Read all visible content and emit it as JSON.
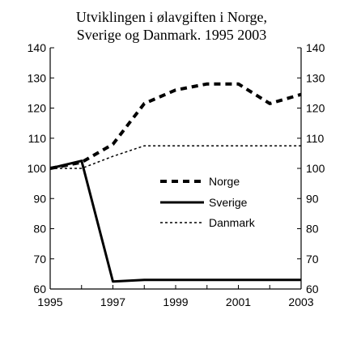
{
  "chart_data": {
    "type": "line",
    "title_lines": [
      "Utviklingen i ølavgiften i Norge,",
      "Sverige og Danmark. 1995 2003"
    ],
    "xlabel": "",
    "ylabel": "",
    "x": [
      1995,
      1996,
      1997,
      1998,
      1999,
      2000,
      2001,
      2002,
      2003
    ],
    "xlim": [
      1995,
      2003
    ],
    "ylim": [
      60,
      140
    ],
    "x_ticks": [
      1995,
      1997,
      1999,
      2001,
      2003
    ],
    "y_ticks": [
      60,
      70,
      80,
      90,
      100,
      110,
      120,
      130,
      140
    ],
    "y_axis_right_mirrored": true,
    "grid": false,
    "legend_position": "center-right",
    "series": [
      {
        "name": "Norge",
        "style": "thick-dashed",
        "color": "#000000",
        "values": [
          100,
          102,
          108,
          121.5,
          126,
          128,
          128,
          121.5,
          124.5
        ]
      },
      {
        "name": "Sverige",
        "style": "solid",
        "color": "#000000",
        "values": [
          100,
          102.5,
          62.5,
          63,
          63,
          63,
          63,
          63,
          63
        ]
      },
      {
        "name": "Danmark",
        "style": "thin-dotted",
        "color": "#000000",
        "values": [
          100,
          100,
          104,
          107.5,
          107.5,
          107.5,
          107.5,
          107.5,
          107.5
        ]
      }
    ]
  }
}
